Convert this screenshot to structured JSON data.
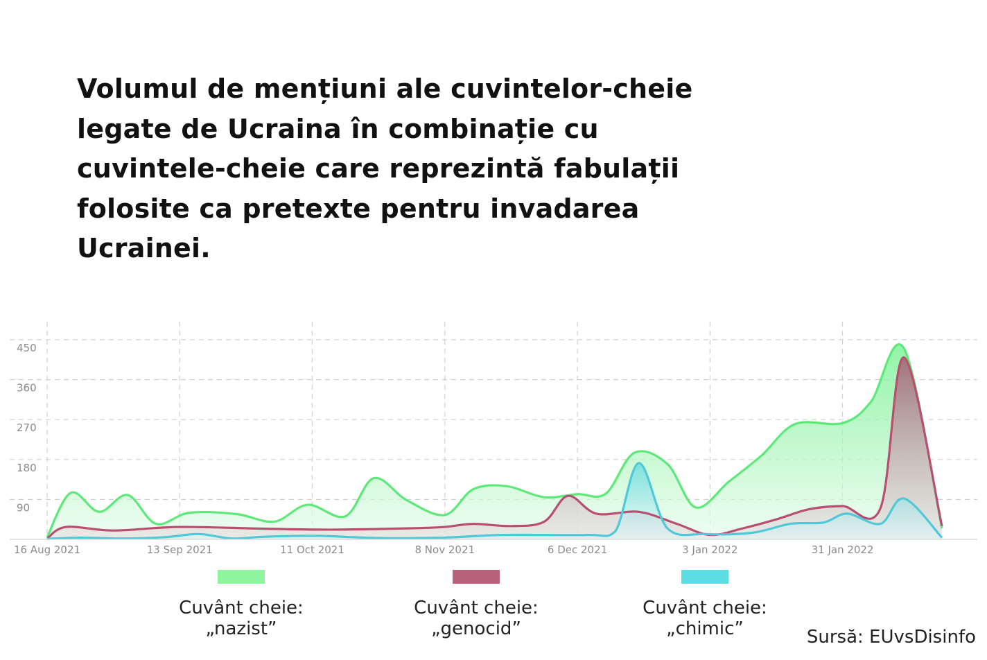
{
  "title": "Volumul de mențiuni ale cuvintelor-cheie legate de Ucraina în combinație cu cuvintele-cheie care reprezintă fabulații folosite ca pretexte pentru invadarea Ucrainei.",
  "source": "Sursă: EUvsDisinfo",
  "legend": [
    {
      "label_line1": "Cuvânt cheie:",
      "label_line2": "„nazist”",
      "color": "#8ff59f"
    },
    {
      "label_line1": "Cuvânt cheie:",
      "label_line2": "„genocid”",
      "color": "#b8627c"
    },
    {
      "label_line1": "Cuvânt cheie:",
      "label_line2": "„chimic”",
      "color": "#5cdce4"
    }
  ],
  "chart_data": {
    "type": "area",
    "title": "",
    "xlabel": "",
    "ylabel": "",
    "x_start": "16 Aug 2021",
    "x_end": "21 Feb 2022",
    "x_ticks": [
      "16 Aug 2021",
      "13 Sep 2021",
      "11 Oct 2021",
      "8 Nov 2021",
      "6 Dec 2021",
      "3 Jan 2022",
      "31 Jan 2022"
    ],
    "y_ticks": [
      90,
      180,
      270,
      360,
      450
    ],
    "ylim": [
      0,
      450
    ],
    "grid": true,
    "series": [
      {
        "name": "Cuvânt cheie: „nazist”",
        "color": "#5ee87a",
        "fill": "#8ff59f",
        "points": [
          [
            "16 Aug 2021",
            5
          ],
          [
            "21 Aug 2021",
            105
          ],
          [
            "27 Aug 2021",
            62
          ],
          [
            "2 Sep 2021",
            100
          ],
          [
            "8 Sep 2021",
            35
          ],
          [
            "15 Sep 2021",
            60
          ],
          [
            "25 Sep 2021",
            57
          ],
          [
            "3 Oct 2021",
            40
          ],
          [
            "10 Oct 2021",
            78
          ],
          [
            "18 Oct 2021",
            52
          ],
          [
            "24 Oct 2021",
            138
          ],
          [
            "31 Oct 2021",
            88
          ],
          [
            "8 Nov 2021",
            55
          ],
          [
            "14 Nov 2021",
            113
          ],
          [
            "21 Nov 2021",
            120
          ],
          [
            "29 Nov 2021",
            95
          ],
          [
            "6 Dec 2021",
            102
          ],
          [
            "12 Dec 2021",
            103
          ],
          [
            "18 Dec 2021",
            195
          ],
          [
            "25 Dec 2021",
            170
          ],
          [
            "31 Dec 2021",
            72
          ],
          [
            "7 Jan 2022",
            130
          ],
          [
            "14 Jan 2022",
            190
          ],
          [
            "21 Jan 2022",
            260
          ],
          [
            "31 Jan 2022",
            262
          ],
          [
            "6 Feb 2022",
            310
          ],
          [
            "13 Feb 2022",
            430
          ],
          [
            "21 Feb 2022",
            25
          ]
        ]
      },
      {
        "name": "Cuvânt cheie: „genocid”",
        "color": "#b84f72",
        "fill": "#b8627c",
        "points": [
          [
            "16 Aug 2021",
            2
          ],
          [
            "20 Aug 2021",
            28
          ],
          [
            "30 Aug 2021",
            20
          ],
          [
            "13 Sep 2021",
            28
          ],
          [
            "1 Oct 2021",
            24
          ],
          [
            "15 Oct 2021",
            22
          ],
          [
            "1 Nov 2021",
            25
          ],
          [
            "8 Nov 2021",
            28
          ],
          [
            "14 Nov 2021",
            35
          ],
          [
            "22 Nov 2021",
            30
          ],
          [
            "29 Nov 2021",
            40
          ],
          [
            "4 Dec 2021",
            98
          ],
          [
            "10 Dec 2021",
            58
          ],
          [
            "19 Dec 2021",
            62
          ],
          [
            "27 Dec 2021",
            35
          ],
          [
            "3 Jan 2022",
            10
          ],
          [
            "10 Jan 2022",
            25
          ],
          [
            "17 Jan 2022",
            45
          ],
          [
            "24 Jan 2022",
            68
          ],
          [
            "31 Jan 2022",
            75
          ],
          [
            "8 Feb 2022",
            70
          ],
          [
            "13 Feb 2022",
            410
          ],
          [
            "21 Feb 2022",
            30
          ]
        ]
      },
      {
        "name": "Cuvânt cheie: „chimic”",
        "color": "#4fc8d8",
        "fill": "#5cdce4",
        "points": [
          [
            "16 Aug 2021",
            1
          ],
          [
            "23 Aug 2021",
            4
          ],
          [
            "1 Sep 2021",
            2
          ],
          [
            "10 Sep 2021",
            5
          ],
          [
            "17 Sep 2021",
            12
          ],
          [
            "24 Sep 2021",
            2
          ],
          [
            "1 Oct 2021",
            6
          ],
          [
            "12 Oct 2021",
            8
          ],
          [
            "25 Oct 2021",
            3
          ],
          [
            "8 Nov 2021",
            4
          ],
          [
            "20 Nov 2021",
            10
          ],
          [
            "8 Dec 2021",
            10
          ],
          [
            "14 Dec 2021",
            18
          ],
          [
            "19 Dec 2021",
            172
          ],
          [
            "25 Dec 2021",
            25
          ],
          [
            "2 Jan 2022",
            12
          ],
          [
            "12 Jan 2022",
            15
          ],
          [
            "20 Jan 2022",
            35
          ],
          [
            "27 Jan 2022",
            38
          ],
          [
            "1 Feb 2022",
            58
          ],
          [
            "8 Feb 2022",
            35
          ],
          [
            "13 Feb 2022",
            92
          ],
          [
            "21 Feb 2022",
            4
          ]
        ]
      }
    ]
  }
}
